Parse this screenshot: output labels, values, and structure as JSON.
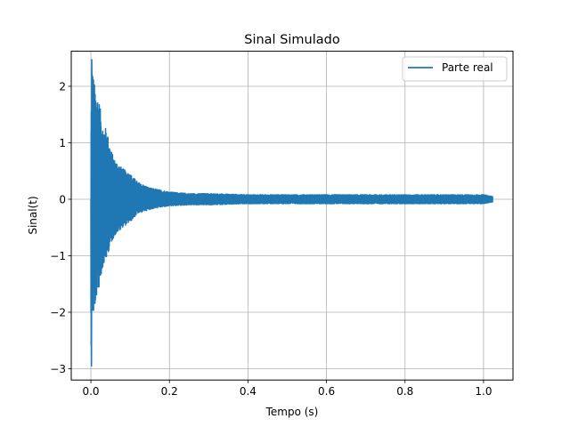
{
  "chart_data": {
    "type": "line",
    "title": "Sinal Simulado",
    "xlabel": "Tempo (s)",
    "ylabel": "Sinal(t)",
    "xlim": [
      -0.05,
      1.075
    ],
    "ylim": [
      -3.2,
      2.62
    ],
    "xticks": [
      0.0,
      0.2,
      0.4,
      0.6,
      0.8,
      1.0
    ],
    "xtick_labels": [
      "0.0",
      "0.2",
      "0.4",
      "0.6",
      "0.8",
      "1.0"
    ],
    "yticks": [
      -3,
      -2,
      -1,
      0,
      1,
      2
    ],
    "ytick_labels": [
      "−3",
      "−2",
      "−1",
      "0",
      "1",
      "2"
    ],
    "grid": true,
    "legend_position": "top-right",
    "series": [
      {
        "name": "Parte real",
        "color": "#1f77b4",
        "description_values": {
          "t_start": 0.0,
          "t_end": 1.023,
          "peak_max": 2.47,
          "peak_min": -2.95,
          "steady_noise_amplitude": 0.08,
          "decay_time_constant": 0.06
        },
        "x": [
          0.0,
          0.002,
          0.004,
          0.006,
          0.008,
          0.01,
          0.015,
          0.02,
          0.03,
          0.04,
          0.05,
          0.06,
          0.08,
          0.1,
          0.12,
          0.15,
          0.18,
          0.2,
          0.25,
          0.3,
          0.4,
          0.5,
          0.6,
          0.7,
          0.8,
          0.9,
          1.0,
          1.023
        ],
        "envelope_upper": [
          1.0,
          2.47,
          2.3,
          2.2,
          2.1,
          2.0,
          1.85,
          1.8,
          1.3,
          1.25,
          0.9,
          0.7,
          0.55,
          0.45,
          0.3,
          0.2,
          0.16,
          0.13,
          0.1,
          0.1,
          0.08,
          0.08,
          0.08,
          0.08,
          0.08,
          0.08,
          0.08,
          0.05
        ],
        "envelope_lower": [
          -2.95,
          -2.0,
          -2.05,
          -2.1,
          -2.0,
          -1.95,
          -1.7,
          -1.6,
          -1.2,
          -1.05,
          -0.8,
          -0.65,
          -0.5,
          -0.4,
          -0.25,
          -0.18,
          -0.14,
          -0.12,
          -0.1,
          -0.1,
          -0.08,
          -0.08,
          -0.08,
          -0.08,
          -0.08,
          -0.08,
          -0.08,
          -0.05
        ]
      }
    ]
  }
}
